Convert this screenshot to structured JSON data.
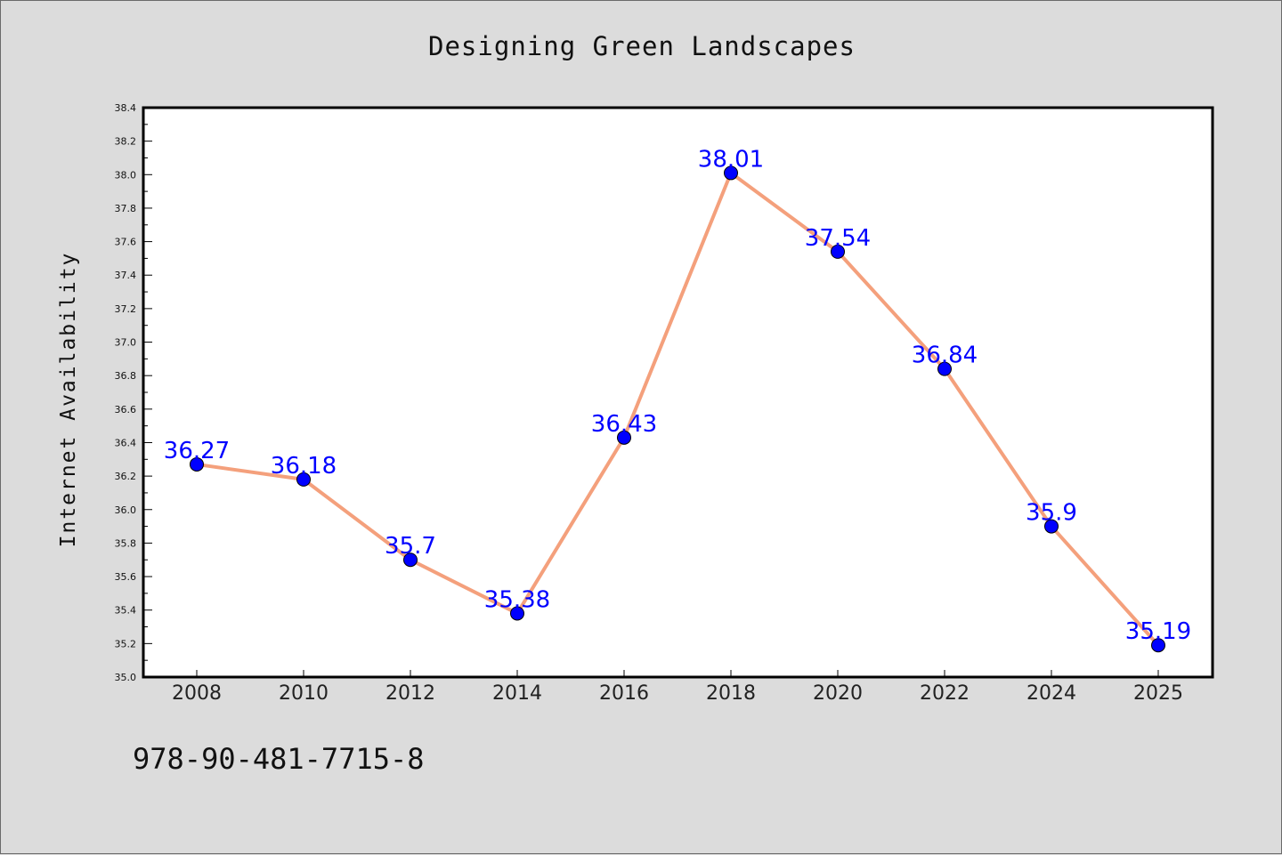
{
  "page": {
    "background": "#dcdcdc",
    "isbn": "978-90-481-7715-8"
  },
  "chart_data": {
    "type": "line",
    "title": "Designing Green Landscapes",
    "xlabel": "",
    "ylabel": "Internet Availability",
    "categories": [
      "2008",
      "2010",
      "2012",
      "2014",
      "2016",
      "2018",
      "2020",
      "2022",
      "2024",
      "2025"
    ],
    "series": [
      {
        "values": [
          36.27,
          36.18,
          35.7,
          35.38,
          36.43,
          38.01,
          37.54,
          36.84,
          35.9,
          35.19
        ],
        "line_color": "#f4a07c",
        "marker_color": "#0000ff"
      }
    ],
    "data_labels": [
      "36.27",
      "36.18",
      "35.7",
      "35.38",
      "36.43",
      "38.01",
      "37.54",
      "36.84",
      "35.9",
      "35.19"
    ],
    "ylim": [
      35.0,
      38.4
    ],
    "y_ticks": [
      "35.0",
      "35.2",
      "35.4",
      "35.6",
      "35.8",
      "36.0",
      "36.2",
      "36.4",
      "36.6",
      "36.8",
      "37.0",
      "37.2",
      "37.4",
      "37.6",
      "37.8",
      "38.0",
      "38.2",
      "38.4"
    ],
    "grid": false,
    "legend": "none"
  }
}
